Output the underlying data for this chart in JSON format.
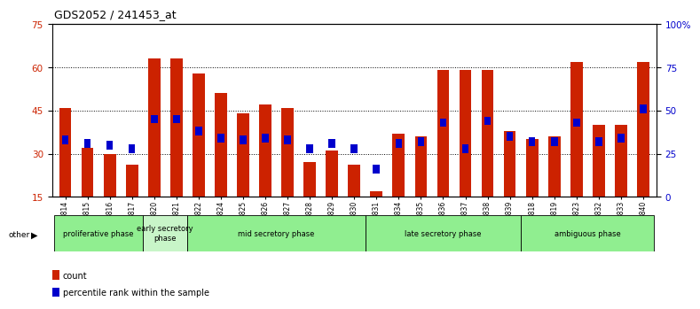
{
  "title": "GDS2052 / 241453_at",
  "samples": [
    "GSM109814",
    "GSM109815",
    "GSM109816",
    "GSM109817",
    "GSM109820",
    "GSM109821",
    "GSM109822",
    "GSM109824",
    "GSM109825",
    "GSM109826",
    "GSM109827",
    "GSM109828",
    "GSM109829",
    "GSM109830",
    "GSM109831",
    "GSM109834",
    "GSM109835",
    "GSM109836",
    "GSM109837",
    "GSM109838",
    "GSM109839",
    "GSM109818",
    "GSM109819",
    "GSM109823",
    "GSM109832",
    "GSM109833",
    "GSM109840"
  ],
  "count_values": [
    46,
    32,
    30,
    26,
    63,
    63,
    58,
    51,
    44,
    47,
    46,
    27,
    31,
    26,
    17,
    37,
    36,
    59,
    59,
    59,
    38,
    35,
    36,
    62,
    40,
    40,
    62
  ],
  "percentile_values": [
    33,
    31,
    30,
    28,
    45,
    45,
    38,
    34,
    33,
    34,
    33,
    28,
    31,
    28,
    16,
    31,
    32,
    43,
    28,
    44,
    35,
    32,
    32,
    43,
    32,
    34,
    51
  ],
  "phases": [
    {
      "label": "proliferative phase",
      "start": 0,
      "end": 4,
      "color": "#90EE90"
    },
    {
      "label": "early secretory\nphase",
      "start": 4,
      "end": 6,
      "color": "#c8f5c8"
    },
    {
      "label": "mid secretory phase",
      "start": 6,
      "end": 14,
      "color": "#90EE90"
    },
    {
      "label": "late secretory phase",
      "start": 14,
      "end": 21,
      "color": "#90EE90"
    },
    {
      "label": "ambiguous phase",
      "start": 21,
      "end": 27,
      "color": "#90EE90"
    }
  ],
  "bar_color": "#CC2200",
  "percentile_color": "#0000CC",
  "ylim_left": [
    15,
    75
  ],
  "ylim_right": [
    0,
    100
  ],
  "yticks_left": [
    15,
    30,
    45,
    60,
    75
  ],
  "yticks_right": [
    0,
    25,
    50,
    75,
    100
  ],
  "yticklabels_right": [
    "0",
    "25",
    "50",
    "75",
    "100%"
  ],
  "bg_color": "#ffffff",
  "legend_count_label": "count",
  "legend_percentile_label": "percentile rank within the sample"
}
